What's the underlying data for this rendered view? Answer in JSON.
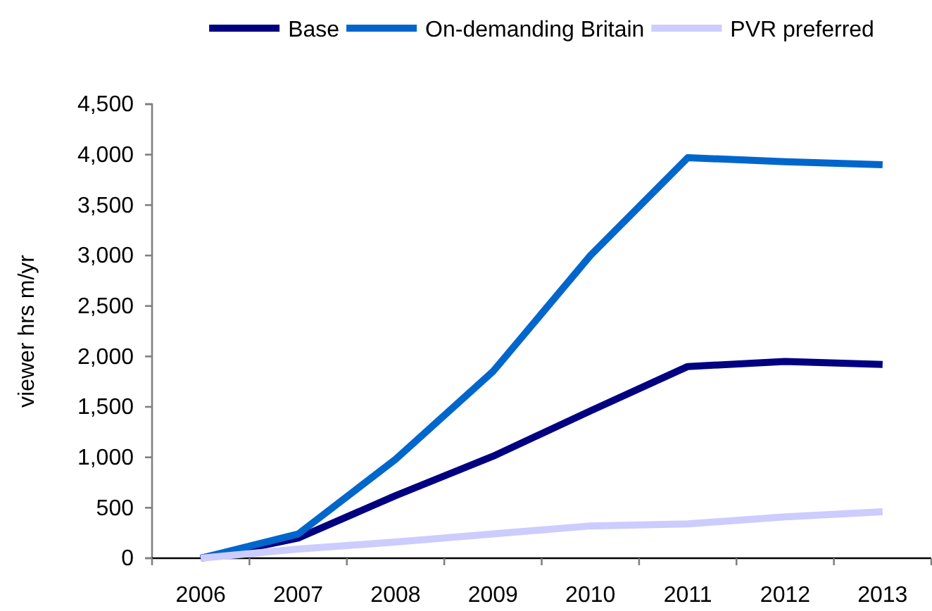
{
  "chart_data": {
    "type": "line",
    "categories": [
      "2006",
      "2007",
      "2008",
      "2009",
      "2010",
      "2011",
      "2012",
      "2013"
    ],
    "series": [
      {
        "name": "Base",
        "color": "#000080",
        "values": [
          0,
          200,
          620,
          1010,
          1460,
          1900,
          1950,
          1920
        ]
      },
      {
        "name": "On-demanding Britain",
        "color": "#0066cc",
        "values": [
          0,
          240,
          980,
          1850,
          3000,
          3970,
          3930,
          3900
        ]
      },
      {
        "name": "PVR preferred",
        "color": "#ccccff",
        "values": [
          0,
          90,
          160,
          240,
          320,
          340,
          410,
          460
        ]
      }
    ],
    "ylabel": "viewer hrs m/yr",
    "ylim": [
      0,
      4500
    ],
    "yticks": [
      0,
      500,
      {
        "value": 1000,
        "label": "1,000"
      },
      {
        "value": 1500,
        "label": "1,500"
      },
      {
        "value": 2000,
        "label": "2,000"
      },
      {
        "value": 2500,
        "label": "2,500"
      },
      {
        "value": 3000,
        "label": "3,000"
      },
      {
        "value": 3500,
        "label": "3,500"
      },
      {
        "value": 4000,
        "label": "4,000"
      },
      {
        "value": 4500,
        "label": "4,500"
      }
    ],
    "legend": "top",
    "grid": false,
    "line_style": "solid"
  }
}
